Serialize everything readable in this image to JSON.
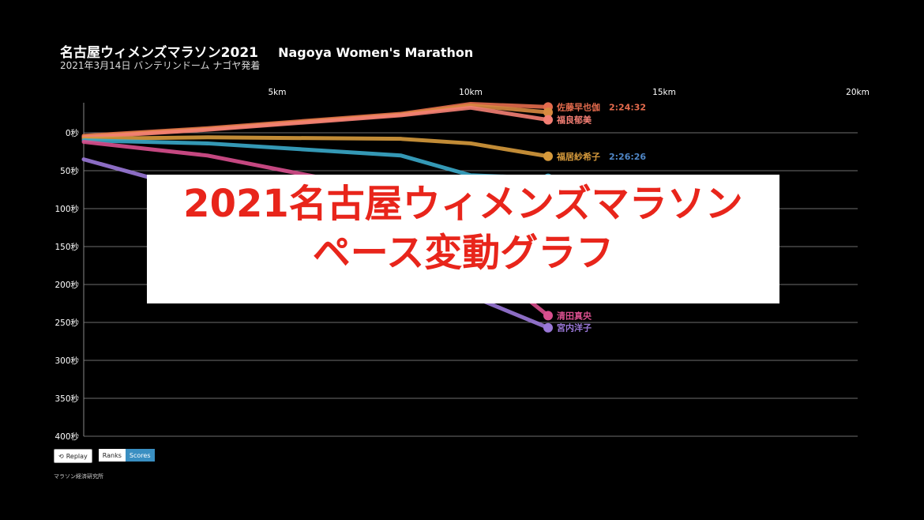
{
  "header": {
    "title_jp": "名古屋ウィメンズマラソン2021",
    "title_en": "Nagoya Women's Marathon",
    "subtitle": "2021年3月14日 バンテリンドーム ナゴヤ発着"
  },
  "controls": {
    "replay_label": "Replay",
    "ranks_label": "Ranks",
    "scores_label": "Scores"
  },
  "credit": "マラソン経済研究所",
  "overlay": {
    "line1": "2021名古屋ウィメンズマラソン",
    "line2": "ペース変動グラフ"
  },
  "colors": {
    "background": "#000000",
    "overlay_text": "#e8251b",
    "gridline": "#6e6e6e"
  },
  "chart_data": {
    "type": "line",
    "x_ticks": [
      5,
      10,
      15,
      20
    ],
    "x_tick_labels": [
      "5km",
      "10km",
      "15km",
      "20km"
    ],
    "y_ticks": [
      0,
      50,
      100,
      150,
      200,
      250,
      300,
      350,
      400
    ],
    "y_tick_labels": [
      "0秒",
      "50秒",
      "100秒",
      "150秒",
      "200秒",
      "250秒",
      "300秒",
      "350秒",
      "400秒"
    ],
    "xlim": [
      0,
      22
    ],
    "ylim": [
      -40,
      400
    ],
    "y_inverted": true,
    "grid": true,
    "series": [
      {
        "name": "佐藤早也伽",
        "color": "#e46b4d",
        "x": [
          0,
          3.2,
          8.2,
          10.0,
          12.0
        ],
        "y": [
          4,
          -6,
          -25,
          -38,
          -34
        ],
        "time_label": "2:24:32"
      },
      {
        "name": "",
        "color": "#d88a40",
        "x": [
          0,
          3.2,
          8.2,
          10.0,
          12.0
        ],
        "y": [
          5,
          -5,
          -24,
          -36,
          -27
        ],
        "time_label": ""
      },
      {
        "name": "福良郁美",
        "color": "#f47f74",
        "x": [
          0,
          3.2,
          8.2,
          10.0,
          12.0
        ],
        "y": [
          6,
          -4,
          -23,
          -33,
          -17
        ],
        "time_label": ""
      },
      {
        "name": "福居紗希子",
        "color": "#d69a3c",
        "x": [
          0,
          3.2,
          8.2,
          10.0,
          12.0
        ],
        "y": [
          8,
          6,
          8,
          14,
          31
        ],
        "time_label": "2:26:26"
      },
      {
        "name": "",
        "color": "#3aa9c9",
        "x": [
          0,
          3.2,
          8.2,
          10.0,
          12.0
        ],
        "y": [
          10,
          14,
          30,
          56,
          60
        ],
        "time_label": ""
      },
      {
        "name": "清田真央",
        "color": "#d94f8e",
        "x": [
          0,
          3.2,
          8.2,
          10.0,
          12.0
        ],
        "y": [
          12,
          30,
          80,
          160,
          241
        ],
        "time_label": ""
      },
      {
        "name": "宮内洋子",
        "color": "#9a78d8",
        "x": [
          0,
          3.2,
          8.2,
          10.0,
          12.0
        ],
        "y": [
          35,
          80,
          160,
          215,
          257
        ],
        "time_label": ""
      }
    ]
  }
}
